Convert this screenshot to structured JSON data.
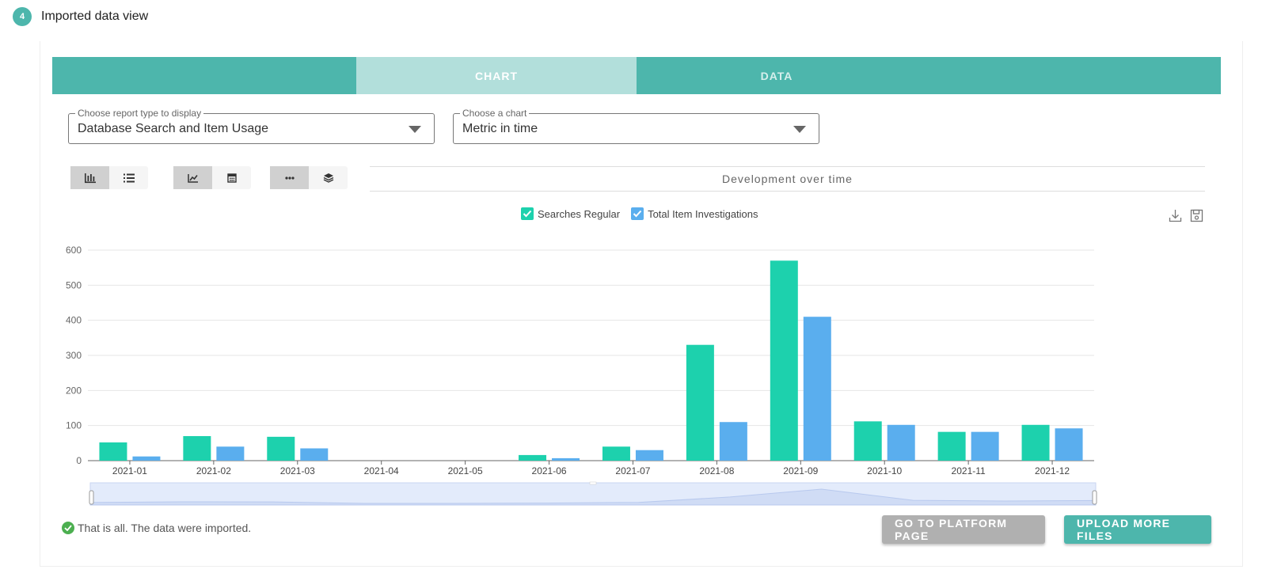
{
  "step": {
    "number": "4",
    "title": "Imported data view"
  },
  "tabs": [
    {
      "label": "CHART",
      "active": true
    },
    {
      "label": "DATA",
      "active": false
    }
  ],
  "selects": {
    "report_type": {
      "legend": "Choose report type to display",
      "value": "Database Search and Item Usage"
    },
    "chart": {
      "legend": "Choose a chart",
      "value": "Metric in time"
    }
  },
  "toggle_groups": [
    [
      {
        "icon": "bar-chart-icon",
        "active": true
      },
      {
        "icon": "list-icon",
        "active": false
      }
    ],
    [
      {
        "icon": "line-chart-icon",
        "active": true
      },
      {
        "icon": "calendar-icon",
        "active": false
      }
    ],
    [
      {
        "icon": "more-horizontal-icon",
        "active": true
      },
      {
        "icon": "layers-icon",
        "active": false
      }
    ]
  ],
  "chart_title": "Development over time",
  "toolbar_icons": [
    "download-icon",
    "save-icon"
  ],
  "colors": {
    "accent": "#4db6ac",
    "series1": "#1dd1ad",
    "series2": "#5aaeee",
    "success": "#4caf50"
  },
  "chart_data": {
    "type": "bar",
    "title": "Development over time",
    "categories": [
      "2021-01",
      "2021-02",
      "2021-03",
      "2021-04",
      "2021-05",
      "2021-06",
      "2021-07",
      "2021-08",
      "2021-09",
      "2021-10",
      "2021-11",
      "2021-12"
    ],
    "series": [
      {
        "name": "Searches Regular",
        "values": [
          52,
          70,
          68,
          0,
          0,
          16,
          40,
          330,
          570,
          112,
          82,
          102
        ]
      },
      {
        "name": "Total Item Investigations",
        "values": [
          12,
          40,
          35,
          0,
          0,
          7,
          30,
          110,
          410,
          102,
          82,
          92
        ]
      }
    ],
    "ylim": [
      0,
      600
    ],
    "yticks": [
      0,
      100,
      200,
      300,
      400,
      500,
      600
    ],
    "grid": true,
    "legend_position": "top-center",
    "has_zoom_slider": true
  },
  "footer": {
    "status_text": "That is all. The data were imported.",
    "platform_button": "GO TO PLATFORM PAGE",
    "upload_button": "UPLOAD MORE FILES"
  }
}
